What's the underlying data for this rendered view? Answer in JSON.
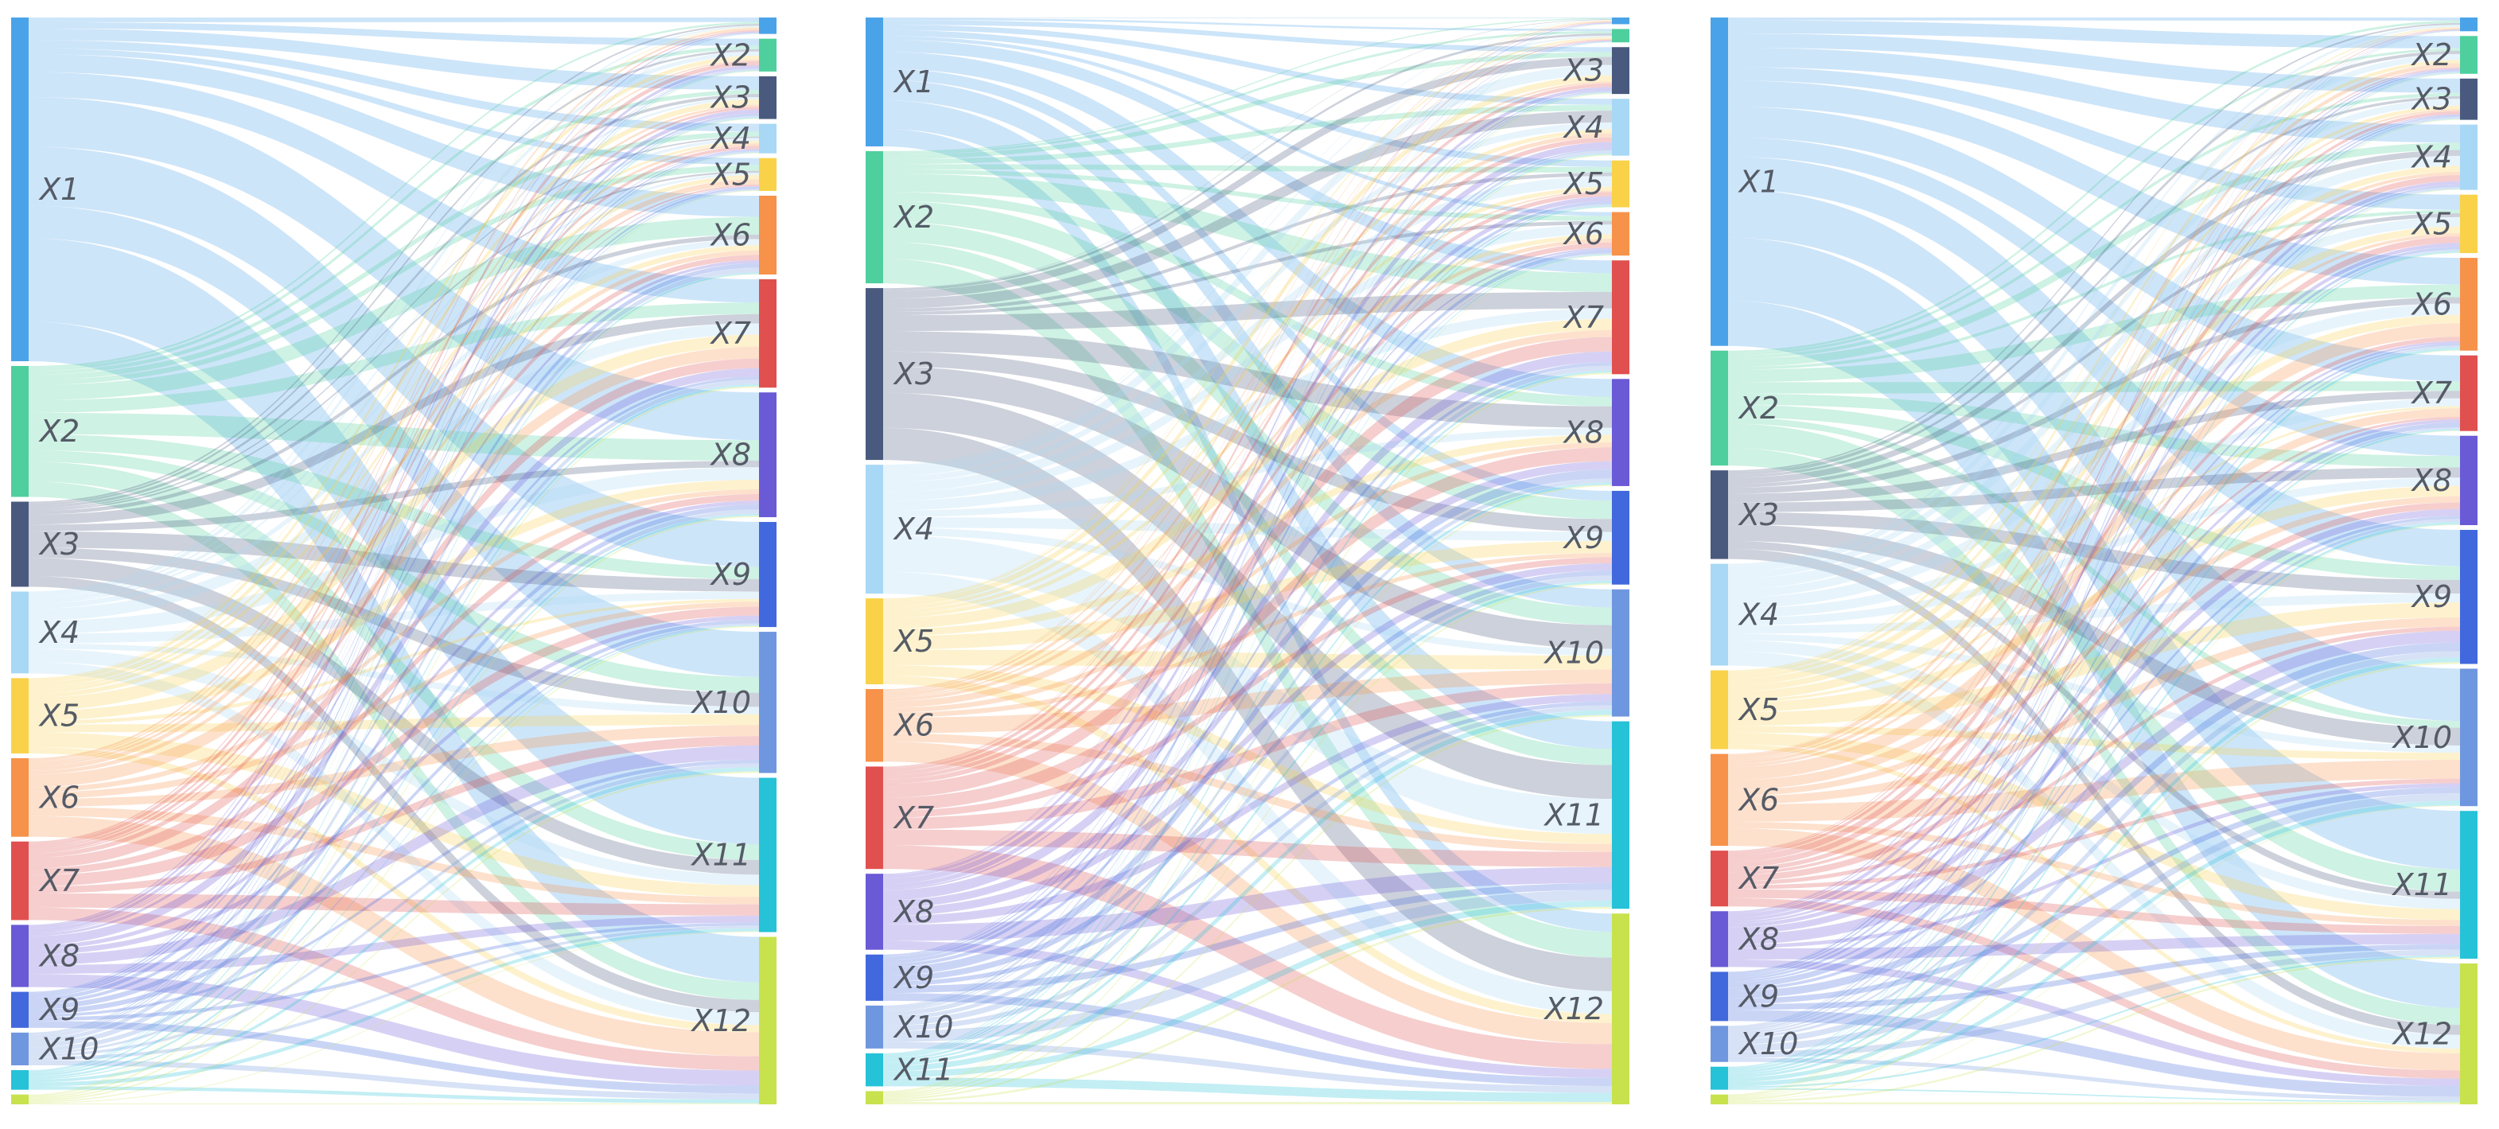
{
  "colors": {
    "X1": "#4aa3e8",
    "X2": "#4fcf9e",
    "X3": "#4a5a7e",
    "X4": "#a8d8f5",
    "X5": "#f9d24a",
    "X6": "#f7924a",
    "X7": "#e0504f",
    "X8": "#6a5ad6",
    "X9": "#4168dd",
    "X10": "#6f97df",
    "X11": "#26c2d8",
    "X12": "#c8e24e"
  },
  "panels": [
    {
      "left_nodes": [
        {
          "id": "X1",
          "label": "X1",
          "value": 210
        },
        {
          "id": "X2",
          "label": "X2",
          "value": 80
        },
        {
          "id": "X3",
          "label": "X3",
          "value": 52
        },
        {
          "id": "X4",
          "label": "X4",
          "value": 50
        },
        {
          "id": "X5",
          "label": "X5",
          "value": 46
        },
        {
          "id": "X6",
          "label": "X6",
          "value": 48
        },
        {
          "id": "X7",
          "label": "X7",
          "value": 48
        },
        {
          "id": "X8",
          "label": "X8",
          "value": 38
        },
        {
          "id": "X9",
          "label": "X9",
          "value": 22
        },
        {
          "id": "X10",
          "label": "X10",
          "value": 20
        },
        {
          "id": "X11",
          "label": "",
          "value": 12
        },
        {
          "id": "X12",
          "label": "",
          "value": 6
        }
      ],
      "right_nodes": [
        {
          "id": "X1",
          "label": "",
          "value": 10
        },
        {
          "id": "X2",
          "label": "X2",
          "value": 20
        },
        {
          "id": "X3",
          "label": "X3",
          "value": 26
        },
        {
          "id": "X4",
          "label": "X4",
          "value": 18
        },
        {
          "id": "X5",
          "label": "X5",
          "value": 20
        },
        {
          "id": "X6",
          "label": "X6",
          "value": 48
        },
        {
          "id": "X7",
          "label": "X7",
          "value": 66
        },
        {
          "id": "X8",
          "label": "X8",
          "value": 76
        },
        {
          "id": "X9",
          "label": "X9",
          "value": 64
        },
        {
          "id": "X10",
          "label": "X10",
          "value": 86
        },
        {
          "id": "X11",
          "label": "X11",
          "value": 94
        },
        {
          "id": "X12",
          "label": "X12",
          "value": 102
        }
      ]
    },
    {
      "left_nodes": [
        {
          "id": "X1",
          "label": "X1",
          "value": 78
        },
        {
          "id": "X2",
          "label": "X2",
          "value": 80
        },
        {
          "id": "X3",
          "label": "X3",
          "value": 104
        },
        {
          "id": "X4",
          "label": "X4",
          "value": 78
        },
        {
          "id": "X5",
          "label": "X5",
          "value": 52
        },
        {
          "id": "X6",
          "label": "X6",
          "value": 44
        },
        {
          "id": "X7",
          "label": "X7",
          "value": 62
        },
        {
          "id": "X8",
          "label": "X8",
          "value": 46
        },
        {
          "id": "X9",
          "label": "X9",
          "value": 28
        },
        {
          "id": "X10",
          "label": "X10",
          "value": 26
        },
        {
          "id": "X11",
          "label": "X11",
          "value": 20
        },
        {
          "id": "X12",
          "label": "",
          "value": 8
        }
      ],
      "right_nodes": [
        {
          "id": "X1",
          "label": "",
          "value": 4
        },
        {
          "id": "X2",
          "label": "",
          "value": 8
        },
        {
          "id": "X3",
          "label": "X3",
          "value": 28
        },
        {
          "id": "X4",
          "label": "X4",
          "value": 34
        },
        {
          "id": "X5",
          "label": "X5",
          "value": 28
        },
        {
          "id": "X6",
          "label": "X6",
          "value": 26
        },
        {
          "id": "X7",
          "label": "X7",
          "value": 68
        },
        {
          "id": "X8",
          "label": "X8",
          "value": 64
        },
        {
          "id": "X9",
          "label": "X9",
          "value": 56
        },
        {
          "id": "X10",
          "label": "X10",
          "value": 76
        },
        {
          "id": "X11",
          "label": "X11",
          "value": 112
        },
        {
          "id": "X12",
          "label": "X12",
          "value": 114
        }
      ]
    },
    {
      "left_nodes": [
        {
          "id": "X1",
          "label": "X1",
          "value": 200
        },
        {
          "id": "X2",
          "label": "X2",
          "value": 70
        },
        {
          "id": "X3",
          "label": "X3",
          "value": 54
        },
        {
          "id": "X4",
          "label": "X4",
          "value": 62
        },
        {
          "id": "X5",
          "label": "X5",
          "value": 48
        },
        {
          "id": "X6",
          "label": "X6",
          "value": 56
        },
        {
          "id": "X7",
          "label": "X7",
          "value": 34
        },
        {
          "id": "X8",
          "label": "X8",
          "value": 34
        },
        {
          "id": "X9",
          "label": "X9",
          "value": 30
        },
        {
          "id": "X10",
          "label": "X10",
          "value": 22
        },
        {
          "id": "X11",
          "label": "",
          "value": 14
        },
        {
          "id": "X12",
          "label": "",
          "value": 6
        }
      ],
      "right_nodes": [
        {
          "id": "X1",
          "label": "",
          "value": 8
        },
        {
          "id": "X2",
          "label": "X2",
          "value": 22
        },
        {
          "id": "X3",
          "label": "X3",
          "value": 24
        },
        {
          "id": "X4",
          "label": "X4",
          "value": 38
        },
        {
          "id": "X5",
          "label": "X5",
          "value": 34
        },
        {
          "id": "X6",
          "label": "X6",
          "value": 54
        },
        {
          "id": "X7",
          "label": "X7",
          "value": 44
        },
        {
          "id": "X8",
          "label": "X8",
          "value": 52
        },
        {
          "id": "X9",
          "label": "X9",
          "value": 78
        },
        {
          "id": "X10",
          "label": "X10",
          "value": 80
        },
        {
          "id": "X11",
          "label": "X11",
          "value": 86
        },
        {
          "id": "X12",
          "label": "X12",
          "value": 82
        }
      ]
    }
  ]
}
